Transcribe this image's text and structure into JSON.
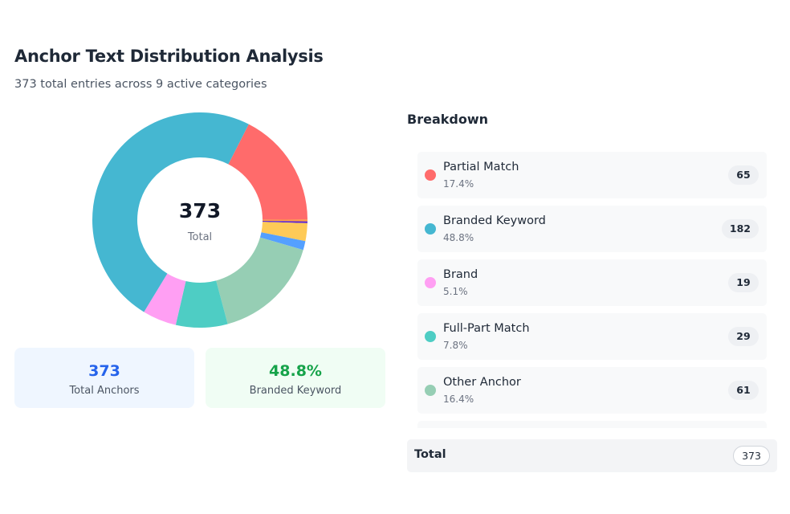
{
  "header": {
    "title": "Anchor Text Distribution Analysis",
    "subtitle": "373 total entries across 9 active categories"
  },
  "donut_center": {
    "value": "373",
    "label": "Total"
  },
  "stats": [
    {
      "value": "373",
      "label": "Total Anchors"
    },
    {
      "value": "48.8%",
      "label": "Branded Keyword"
    }
  ],
  "breakdown": {
    "title": "Breakdown",
    "items": [
      {
        "name": "Partial Match",
        "pct": "17.4%",
        "count": "65",
        "color": "#ff6b6b"
      },
      {
        "name": "Branded Keyword",
        "pct": "48.8%",
        "count": "182",
        "color": "#45b7d1"
      },
      {
        "name": "Brand",
        "pct": "5.1%",
        "count": "19",
        "color": "#ff9ff3"
      },
      {
        "name": "Full-Part Match",
        "pct": "7.8%",
        "count": "29",
        "color": "#4ecdc4"
      },
      {
        "name": "Other Anchor",
        "pct": "16.4%",
        "count": "61",
        "color": "#96ceb4"
      }
    ],
    "total_label": "Total",
    "total_value": "373"
  },
  "chart_data": {
    "type": "pie",
    "donut": true,
    "total": 373,
    "slices": [
      {
        "name": "Partial Match",
        "value": 65,
        "color": "#ff6b6b"
      },
      {
        "value": 1,
        "color": "#ff9f43"
      },
      {
        "value": 1,
        "color": "#5f27cd"
      },
      {
        "value": 10,
        "color": "#feca57"
      },
      {
        "value": 5,
        "color": "#54a0ff"
      },
      {
        "name": "Other Anchor",
        "value": 61,
        "color": "#96ceb4"
      },
      {
        "name": "Full-Part Match",
        "value": 29,
        "color": "#4ecdc4"
      },
      {
        "name": "Brand",
        "value": 19,
        "color": "#ff9ff3"
      },
      {
        "name": "Branded Keyword",
        "value": 182,
        "color": "#45b7d1"
      }
    ]
  }
}
